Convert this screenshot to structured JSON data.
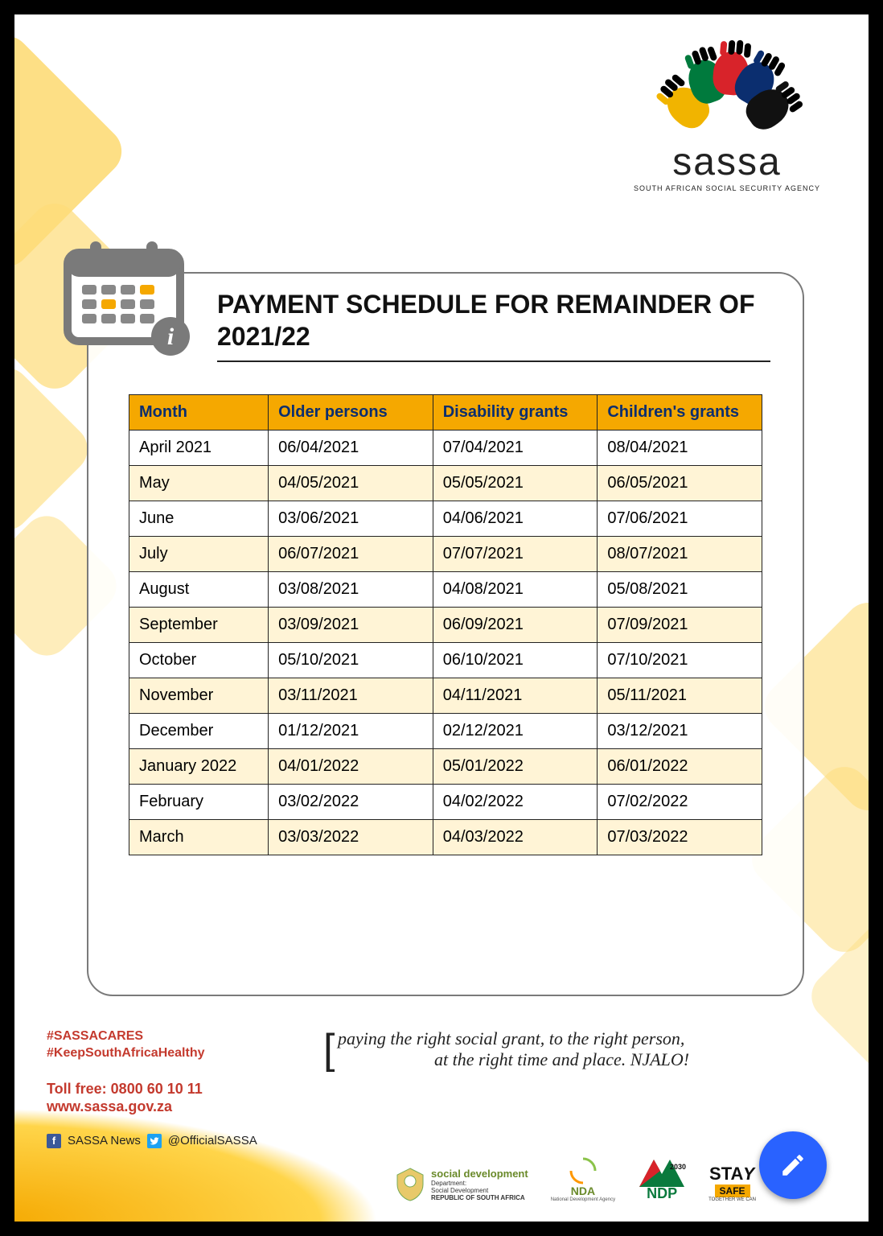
{
  "logo": {
    "name": "sassa",
    "subtitle": "SOUTH AFRICAN SOCIAL SECURITY AGENCY",
    "hand_colors": [
      "#f1b400",
      "#007a3d",
      "#d8232a",
      "#0b2e6f",
      "#111111"
    ]
  },
  "title": "PAYMENT SCHEDULE FOR REMAINDER OF 2021/22",
  "table": {
    "header_bg": "#f5a800",
    "header_text_color": "#0b2e6f",
    "row_alt_bg": "#fff4d6",
    "row_bg": "#ffffff",
    "border_color": "#222222",
    "cell_fontsize": 20,
    "columns": [
      "Month",
      "Older persons",
      "Disability grants",
      "Children's grants"
    ],
    "rows": [
      [
        "April 2021",
        "06/04/2021",
        "07/04/2021",
        "08/04/2021"
      ],
      [
        "May",
        "04/05/2021",
        "05/05/2021",
        "06/05/2021"
      ],
      [
        "June",
        "03/06/2021",
        "04/06/2021",
        "07/06/2021"
      ],
      [
        "July",
        "06/07/2021",
        "07/07/2021",
        "08/07/2021"
      ],
      [
        "August",
        "03/08/2021",
        "04/08/2021",
        "05/08/2021"
      ],
      [
        "September",
        "03/09/2021",
        "06/09/2021",
        "07/09/2021"
      ],
      [
        "October",
        "05/10/2021",
        "06/10/2021",
        "07/10/2021"
      ],
      [
        "November",
        "03/11/2021",
        "04/11/2021",
        "05/11/2021"
      ],
      [
        "December",
        "01/12/2021",
        "02/12/2021",
        "03/12/2021"
      ],
      [
        "January 2022",
        "04/01/2022",
        "05/01/2022",
        "06/01/2022"
      ],
      [
        "February",
        "03/02/2022",
        "04/02/2022",
        "07/02/2022"
      ],
      [
        "March",
        "03/03/2022",
        "04/03/2022",
        "07/03/2022"
      ]
    ]
  },
  "footer": {
    "hashtag1": "#SASSACARES",
    "hashtag2": "#KeepSouthAfricaHealthy",
    "tollfree_label": "Toll free: 0800 60 10 11",
    "website": "www.sassa.gov.za",
    "fb_label": "SASSA News",
    "tw_label": "@OfficialSASSA",
    "tagline_line1": "paying the right social grant, to the right person,",
    "tagline_line2": "at the right time and place. NJALO!",
    "partners": {
      "socdev_title": "social development",
      "socdev_sub1": "Department:",
      "socdev_sub2": "Social Development",
      "socdev_sub3": "REPUBLIC OF SOUTH AFRICA",
      "nda": "NDA",
      "nda_sub": "National Development Agency",
      "ndp": "NDP",
      "ndp_year": "2030",
      "stay": "STAY",
      "stay_sub": "SAFE"
    }
  },
  "colors": {
    "accent_yellow": "#f5a800",
    "accent_red": "#c43a2e",
    "fab_blue": "#2962ff"
  }
}
